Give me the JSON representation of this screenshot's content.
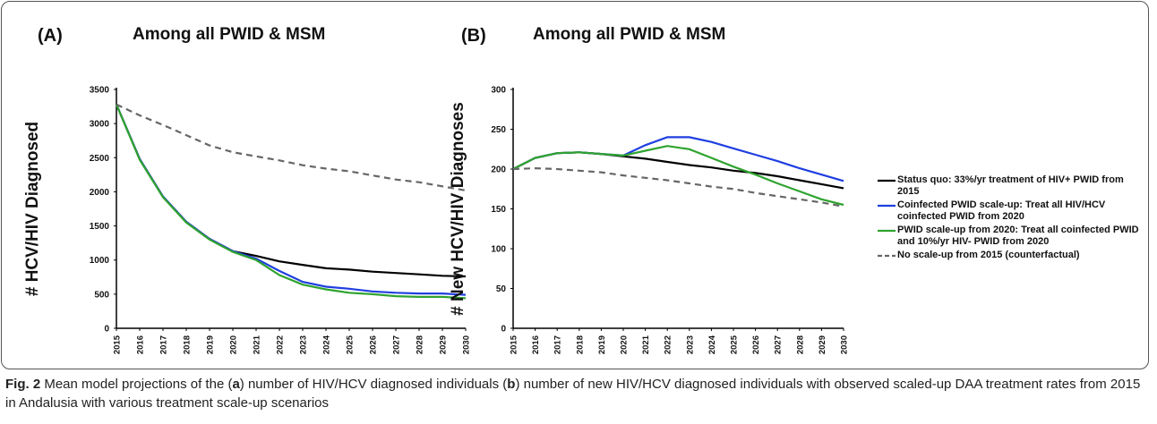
{
  "chart_data": [
    {
      "type": "line",
      "panel": "(A)",
      "title": "Among all PWID & MSM",
      "y_label": "# HCV/HIV Diagnosed",
      "x": [
        2015,
        2016,
        2017,
        2018,
        2019,
        2020,
        2021,
        2022,
        2023,
        2024,
        2025,
        2026,
        2027,
        2028,
        2029,
        2030
      ],
      "xlim": [
        2015,
        2030
      ],
      "ylim": [
        0,
        3500
      ],
      "yticks": [
        0,
        500,
        1000,
        1500,
        2000,
        2500,
        3000,
        3500
      ],
      "series": [
        {
          "color": "#000000",
          "dash": false,
          "values": [
            3280,
            2480,
            1930,
            1560,
            1310,
            1130,
            1060,
            980,
            930,
            880,
            860,
            830,
            810,
            790,
            770,
            760
          ]
        },
        {
          "color": "#1f3fe0",
          "dash": false,
          "values": [
            3280,
            2480,
            1930,
            1560,
            1310,
            1130,
            1020,
            840,
            680,
            610,
            580,
            540,
            520,
            510,
            510,
            490
          ]
        },
        {
          "color": "#2fa32f",
          "dash": false,
          "values": [
            3280,
            2470,
            1920,
            1550,
            1300,
            1120,
            1000,
            780,
            640,
            570,
            520,
            500,
            470,
            460,
            460,
            440
          ]
        },
        {
          "color": "#666666",
          "dash": true,
          "values": [
            3280,
            3120,
            2980,
            2830,
            2680,
            2580,
            2520,
            2460,
            2390,
            2340,
            2300,
            2240,
            2180,
            2140,
            2080,
            2020
          ]
        }
      ]
    },
    {
      "type": "line",
      "panel": "(B)",
      "title": "Among all PWID & MSM",
      "y_label": "# New HCV/HIV Diagnoses",
      "x": [
        2015,
        2016,
        2017,
        2018,
        2019,
        2020,
        2021,
        2022,
        2023,
        2024,
        2025,
        2026,
        2027,
        2028,
        2029,
        2030
      ],
      "xlim": [
        2015,
        2030
      ],
      "ylim": [
        0,
        300
      ],
      "yticks": [
        0,
        50,
        100,
        150,
        200,
        250,
        300
      ],
      "series": [
        {
          "name": "Status quo: 33%/yr treatment of HIV+ PWID from 2015",
          "color": "#000000",
          "dash": false,
          "values": [
            200,
            214,
            220,
            221,
            219,
            216,
            213,
            209,
            205,
            202,
            198,
            195,
            191,
            186,
            181,
            176
          ]
        },
        {
          "name": "Coinfected PWID scale-up: Treat all HIV/HCV coinfected PWID from 2020",
          "color": "#1f3fe0",
          "dash": false,
          "values": [
            200,
            214,
            220,
            221,
            219,
            217,
            230,
            240,
            240,
            234,
            226,
            218,
            210,
            201,
            193,
            185
          ]
        },
        {
          "name": "PWID scale-up from 2020: Treat all coinfected PWID and 10%/yr HIV- PWID from 2020",
          "color": "#2fa32f",
          "dash": false,
          "values": [
            200,
            214,
            220,
            221,
            219,
            217,
            223,
            229,
            225,
            214,
            203,
            193,
            182,
            172,
            162,
            155
          ]
        },
        {
          "name": "No scale-up from 2015 (counterfactual)",
          "color": "#666666",
          "dash": true,
          "values": [
            200,
            201,
            200,
            198,
            196,
            192,
            189,
            186,
            182,
            178,
            175,
            170,
            166,
            162,
            158,
            153
          ]
        }
      ]
    }
  ],
  "caption": [
    {
      "text": "Fig. 2",
      "bold": true
    },
    {
      "text": " Mean model projections of the (",
      "bold": false
    },
    {
      "text": "a",
      "bold": true
    },
    {
      "text": ") number of HIV/HCV diagnosed individuals (",
      "bold": false
    },
    {
      "text": "b",
      "bold": true
    },
    {
      "text": ") number of new HIV/HCV diagnosed individuals with observed scaled-up DAA treatment rates from 2015 in Andalusia with various treatment scale-up scenarios",
      "bold": false
    }
  ]
}
